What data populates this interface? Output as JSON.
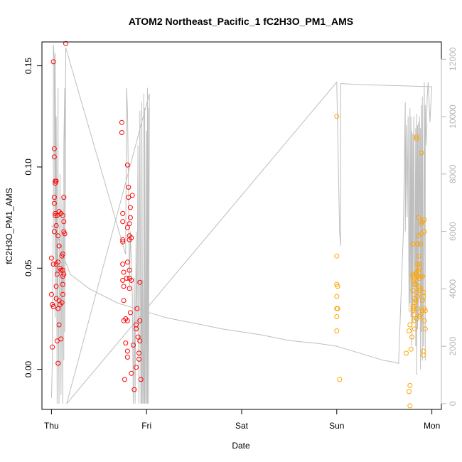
{
  "chart_data": {
    "type": "scatter",
    "title": "ATOM2 Northeast_Pacific_1 fC2H3O_PM1_AMS",
    "xlabel": "Date",
    "ylabel": "fC2H3O_PM1_AMS",
    "x_ticks": [
      "Thu",
      "Fri",
      "Sat",
      "Sun",
      "Mon"
    ],
    "y_ticks": [
      "0.00",
      "0.05",
      "0.10",
      "0.15"
    ],
    "y2_ticks": [
      "0",
      "2000",
      "4000",
      "6000",
      "8000",
      "10000",
      "12000"
    ],
    "xlim": [
      -0.1,
      4.1
    ],
    "ylim": [
      -0.0198,
      0.1618
    ],
    "y2lim": [
      -200,
      12600
    ],
    "grid": false,
    "colors": {
      "series_red": "#ff0000",
      "series_orange": "#ffa500",
      "secondary_line": "#bebebe",
      "frame": "#000000",
      "secondary_axis": "#b4b4b4"
    },
    "series": [
      {
        "color": "#ff0000",
        "points": [
          [
            0.0,
            0.037
          ],
          [
            0.0,
            0.055
          ],
          [
            0.01,
            0.032
          ],
          [
            0.01,
            0.011
          ],
          [
            0.02,
            0.152
          ],
          [
            0.02,
            0.031
          ],
          [
            0.02,
            0.052
          ],
          [
            0.03,
            0.085
          ],
          [
            0.03,
            0.068
          ],
          [
            0.03,
            0.109
          ],
          [
            0.03,
            0.105
          ],
          [
            0.03,
            0.082
          ],
          [
            0.04,
            0.092
          ],
          [
            0.04,
            0.093
          ],
          [
            0.04,
            0.077
          ],
          [
            0.04,
            0.076
          ],
          [
            0.05,
            0.093
          ],
          [
            0.05,
            0.052
          ],
          [
            0.05,
            0.041
          ],
          [
            0.05,
            0.071
          ],
          [
            0.05,
            0.035
          ],
          [
            0.06,
            0.014
          ],
          [
            0.06,
            0.047
          ],
          [
            0.06,
            0.076
          ],
          [
            0.07,
            0.003
          ],
          [
            0.07,
            0.053
          ],
          [
            0.07,
            0.066
          ],
          [
            0.07,
            0.03
          ],
          [
            0.08,
            0.078
          ],
          [
            0.08,
            0.034
          ],
          [
            0.08,
            0.022
          ],
          [
            0.08,
            0.061
          ],
          [
            0.09,
            0.05
          ],
          [
            0.09,
            0.032
          ],
          [
            0.1,
            0.049
          ],
          [
            0.1,
            0.077
          ],
          [
            0.1,
            0.015
          ],
          [
            0.11,
            0.033
          ],
          [
            0.11,
            0.056
          ],
          [
            0.12,
            0.037
          ],
          [
            0.12,
            0.076
          ],
          [
            0.12,
            0.049
          ],
          [
            0.12,
            0.046
          ],
          [
            0.12,
            0.042
          ],
          [
            0.12,
            0.057
          ],
          [
            0.13,
            0.068
          ],
          [
            0.13,
            0.073
          ],
          [
            0.13,
            0.047
          ],
          [
            0.13,
            0.085
          ],
          [
            0.14,
            0.067
          ],
          [
            0.15,
            0.161
          ],
          [
            0.74,
            0.122
          ],
          [
            0.74,
            0.117
          ],
          [
            0.75,
            0.077
          ],
          [
            0.75,
            0.073
          ],
          [
            0.75,
            0.063
          ],
          [
            0.75,
            0.064
          ],
          [
            0.75,
            0.052
          ],
          [
            0.75,
            0.044
          ],
          [
            0.76,
            0.034
          ],
          [
            0.76,
            0.041
          ],
          [
            0.76,
            0.024
          ],
          [
            0.76,
            0.048
          ],
          [
            0.77,
            -0.005
          ],
          [
            0.78,
            0.025
          ],
          [
            0.78,
            0.013
          ],
          [
            0.79,
            0.045
          ],
          [
            0.8,
            0.101
          ],
          [
            0.8,
            0.07
          ],
          [
            0.8,
            0.053
          ],
          [
            0.8,
            0.009
          ],
          [
            0.8,
            0.006
          ],
          [
            0.8,
            0.024
          ],
          [
            0.81,
            0.085
          ],
          [
            0.81,
            0.09
          ],
          [
            0.82,
            0.072
          ],
          [
            0.82,
            0.066
          ],
          [
            0.82,
            0.064
          ],
          [
            0.82,
            0.049
          ],
          [
            0.82,
            0.045
          ],
          [
            0.82,
            0.04
          ],
          [
            0.83,
            0.028
          ],
          [
            0.83,
            0.08
          ],
          [
            0.83,
            0.075
          ],
          [
            0.84,
            0.044
          ],
          [
            0.84,
            -0.002
          ],
          [
            0.84,
            0.065
          ],
          [
            0.85,
            0.086
          ],
          [
            0.86,
            0.012
          ],
          [
            0.87,
            -0.01
          ],
          [
            0.89,
            0.001
          ],
          [
            0.89,
            0.02
          ],
          [
            0.89,
            0.022
          ],
          [
            0.9,
            0.03
          ],
          [
            0.91,
            0.016
          ],
          [
            0.92,
            0.008
          ],
          [
            0.92,
            0.005
          ],
          [
            0.93,
            0.014
          ],
          [
            0.93,
            0.024
          ],
          [
            0.93,
            0.043
          ],
          [
            0.94,
            -0.005
          ]
        ]
      },
      {
        "color": "#ffa500",
        "points": [
          [
            3.0,
            0.125
          ],
          [
            3.0,
            0.056
          ],
          [
            3.0,
            0.042
          ],
          [
            3.0,
            0.036
          ],
          [
            3.0,
            0.03
          ],
          [
            3.0,
            0.026
          ],
          [
            3.0,
            0.019
          ],
          [
            3.01,
            0.041
          ],
          [
            3.01,
            0.03
          ],
          [
            3.03,
            -0.005
          ],
          [
            3.73,
            0.008
          ],
          [
            3.76,
            -0.011
          ],
          [
            3.76,
            0.019
          ],
          [
            3.77,
            -0.018
          ],
          [
            3.77,
            0.022
          ],
          [
            3.77,
            -0.008
          ],
          [
            3.78,
            0.01
          ],
          [
            3.79,
            0.016
          ],
          [
            3.8,
            0.062
          ],
          [
            3.8,
            0.047
          ],
          [
            3.8,
            0.046
          ],
          [
            3.8,
            0.039
          ],
          [
            3.8,
            0.031
          ],
          [
            3.8,
            0.029
          ],
          [
            3.81,
            0.044
          ],
          [
            3.81,
            0.03
          ],
          [
            3.81,
            0.027
          ],
          [
            3.81,
            0.024
          ],
          [
            3.81,
            0.042
          ],
          [
            3.82,
            0.033
          ],
          [
            3.82,
            0.045
          ],
          [
            3.82,
            0.035
          ],
          [
            3.82,
            0.02
          ],
          [
            3.83,
            0.047
          ],
          [
            3.83,
            0.034
          ],
          [
            3.83,
            0.042
          ],
          [
            3.84,
            0.115
          ],
          [
            3.84,
            0.114
          ],
          [
            3.84,
            0.038
          ],
          [
            3.84,
            0.048
          ],
          [
            3.84,
            0.025
          ],
          [
            3.85,
            0.062
          ],
          [
            3.85,
            0.052
          ],
          [
            3.85,
            0.046
          ],
          [
            3.85,
            0.036
          ],
          [
            3.85,
            0.03
          ],
          [
            3.86,
            0.041
          ],
          [
            3.86,
            0.049
          ],
          [
            3.86,
            0.056
          ],
          [
            3.86,
            0.075
          ],
          [
            3.86,
            0.066
          ],
          [
            3.87,
            0.05
          ],
          [
            3.87,
            0.045
          ],
          [
            3.87,
            0.026
          ],
          [
            3.87,
            0.039
          ],
          [
            3.87,
            0.052
          ],
          [
            3.88,
            0.046
          ],
          [
            3.88,
            0.062
          ],
          [
            3.88,
            0.027
          ],
          [
            3.88,
            0.04
          ],
          [
            3.89,
            0.107
          ],
          [
            3.89,
            0.072
          ],
          [
            3.89,
            0.067
          ],
          [
            3.9,
            0.073
          ],
          [
            3.9,
            0.046
          ],
          [
            3.9,
            0.034
          ],
          [
            3.9,
            0.029
          ],
          [
            3.91,
            0.009
          ],
          [
            3.91,
            0.007
          ],
          [
            3.91,
            0.038
          ],
          [
            3.91,
            0.036
          ],
          [
            3.92,
            0.074
          ],
          [
            3.92,
            0.068
          ],
          [
            3.92,
            0.03
          ],
          [
            3.92,
            0.024
          ],
          [
            3.93,
            0.029
          ],
          [
            3.93,
            0.02
          ]
        ]
      }
    ],
    "secondary_line": {
      "color": "#bebebe",
      "axis": "right",
      "x": [
        0.0,
        0.01,
        0.01,
        0.02,
        0.02,
        0.03,
        0.04,
        0.04,
        0.04,
        0.05,
        0.05,
        0.06,
        0.06,
        0.07,
        0.07,
        0.08,
        0.08,
        0.09,
        0.1,
        0.11,
        0.12,
        0.12,
        0.13,
        0.13,
        0.13,
        0.14,
        0.14,
        0.15,
        0.78,
        0.79,
        0.8,
        0.81,
        0.82,
        0.83,
        0.85,
        0.86,
        0.87,
        0.88,
        0.89,
        0.9,
        0.91,
        0.92,
        0.93,
        0.94,
        0.94,
        0.95,
        0.95,
        0.96,
        0.96,
        0.97,
        0.97,
        0.97,
        0.98,
        0.98,
        0.99,
        1.0,
        1.0,
        1.01,
        1.01,
        1.02,
        1.02,
        1.03,
        0.16,
        3.0,
        3.0,
        3.03,
        3.04,
        3.04,
        3.05,
        3.1,
        3.2,
        3.4,
        3.6,
        3.8,
        4.0,
        4.0,
        3.99,
        3.98,
        3.97,
        3.96,
        3.95,
        3.94,
        3.93,
        3.93,
        3.92,
        3.91,
        3.9,
        3.9,
        3.89,
        3.89,
        3.88,
        3.88,
        3.87,
        3.86,
        3.86,
        3.85,
        3.85,
        3.84,
        3.84,
        3.83,
        3.83,
        3.82,
        3.81,
        3.8,
        3.8,
        3.79,
        3.79,
        3.78,
        3.78,
        3.77,
        3.77,
        3.76,
        3.75,
        3.74,
        3.73,
        3.72,
        3.72,
        3.7,
        3.65,
        3.6,
        3.5,
        3.4,
        3.3,
        3.2,
        3.1,
        3.0,
        2.8,
        2.5,
        2.2,
        1.8,
        1.5,
        1.2,
        1.0,
        0.7,
        0.4,
        0.2,
        0.14,
        0.1,
        0.05,
        0.0
      ],
      "y": [
        200,
        1500,
        3000,
        6500,
        12500,
        12000,
        3000,
        6000,
        12200,
        4500,
        10000,
        0,
        3000,
        11000,
        4000,
        0,
        2000,
        8000,
        300,
        7200,
        0,
        4000,
        7000,
        1500,
        9000,
        11000,
        2500,
        12400,
        5200,
        11000,
        10200,
        7500,
        4000,
        6000,
        3800,
        0,
        4400,
        0,
        6000,
        2500,
        9000,
        0,
        10200,
        0,
        4300,
        0,
        10500,
        0,
        4300,
        0,
        10800,
        2000,
        0,
        10300,
        0,
        9500,
        0,
        11000,
        0,
        10300,
        0,
        10800,
        0,
        11200,
        11150,
        6000,
        5500,
        11150,
        11150,
        11140,
        11120,
        11100,
        11080,
        11060,
        11040,
        11000,
        10500,
        9800,
        10600,
        11200,
        10600,
        9000,
        10400,
        1500,
        11200,
        2000,
        10700,
        1500,
        10400,
        2500,
        9600,
        1200,
        10000,
        3000,
        9800,
        2600,
        9700,
        1000,
        10100,
        2000,
        9600,
        3200,
        10000,
        2800,
        9400,
        2000,
        9500,
        3000,
        10000,
        3500,
        10300,
        3200,
        10000,
        6500,
        9700,
        6000,
        10500,
        6000,
        1400,
        1450,
        1500,
        1600,
        1700,
        1800,
        1900,
        2000,
        2100,
        2200,
        2400,
        2600,
        2800,
        3000,
        3200,
        3500,
        4000,
        4500,
        5000,
        5500,
        6000,
        6200
      ]
    }
  }
}
